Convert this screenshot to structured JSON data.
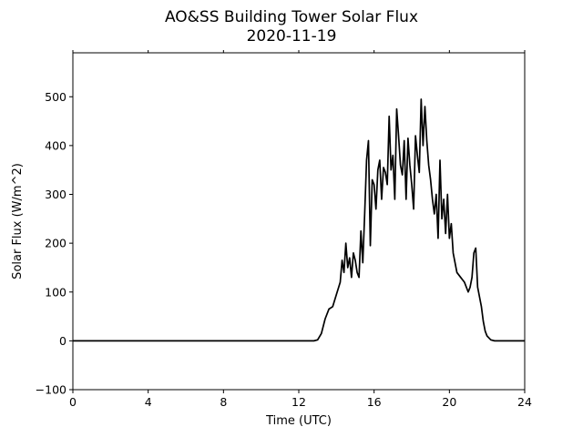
{
  "chart_data": {
    "type": "line",
    "title": "AO&SS Building Tower Solar Flux",
    "subtitle": "2020-11-19",
    "xlabel": "Time (UTC)",
    "ylabel": "Solar Flux (W/m^2)",
    "xlim": [
      0,
      24
    ],
    "ylim": [
      -100,
      590
    ],
    "xticks": [
      0,
      4,
      8,
      12,
      16,
      20,
      24
    ],
    "yticks": [
      -100,
      0,
      100,
      200,
      300,
      400,
      500
    ],
    "grid": false,
    "line_color": "#000000",
    "series": [
      {
        "x": [
          0,
          12.8,
          13.0,
          13.2,
          13.4,
          13.6,
          13.8,
          14.0,
          14.2,
          14.3,
          14.4,
          14.5,
          14.6,
          14.7,
          14.8,
          14.9,
          15.0,
          15.1,
          15.2,
          15.3,
          15.4,
          15.5,
          15.6,
          15.7,
          15.8,
          15.9,
          16.0,
          16.1,
          16.2,
          16.3,
          16.4,
          16.5,
          16.6,
          16.7,
          16.8,
          16.9,
          17.0,
          17.1,
          17.2,
          17.3,
          17.4,
          17.5,
          17.6,
          17.7,
          17.8,
          17.9,
          18.0,
          18.1,
          18.2,
          18.3,
          18.4,
          18.5,
          18.6,
          18.7,
          18.8,
          18.9,
          19.0,
          19.1,
          19.2,
          19.3,
          19.4,
          19.5,
          19.6,
          19.7,
          19.8,
          19.9,
          20.0,
          20.1,
          20.2,
          20.3,
          20.4,
          20.6,
          20.8,
          21.0,
          21.1,
          21.2,
          21.3,
          21.4,
          21.5,
          21.6,
          21.7,
          21.8,
          21.9,
          22.0,
          22.2,
          22.4,
          22.6,
          24
        ],
        "y": [
          0,
          0,
          2,
          15,
          45,
          65,
          70,
          95,
          120,
          165,
          140,
          200,
          150,
          170,
          130,
          180,
          165,
          140,
          130,
          225,
          160,
          260,
          370,
          410,
          195,
          330,
          320,
          270,
          350,
          370,
          290,
          355,
          345,
          320,
          460,
          350,
          380,
          290,
          475,
          420,
          360,
          340,
          410,
          290,
          415,
          360,
          320,
          270,
          420,
          380,
          345,
          495,
          400,
          480,
          410,
          360,
          330,
          290,
          260,
          300,
          210,
          370,
          250,
          290,
          220,
          300,
          210,
          240,
          180,
          160,
          140,
          130,
          120,
          100,
          110,
          130,
          180,
          190,
          110,
          90,
          70,
          40,
          20,
          10,
          2,
          0,
          0,
          0
        ]
      }
    ]
  }
}
